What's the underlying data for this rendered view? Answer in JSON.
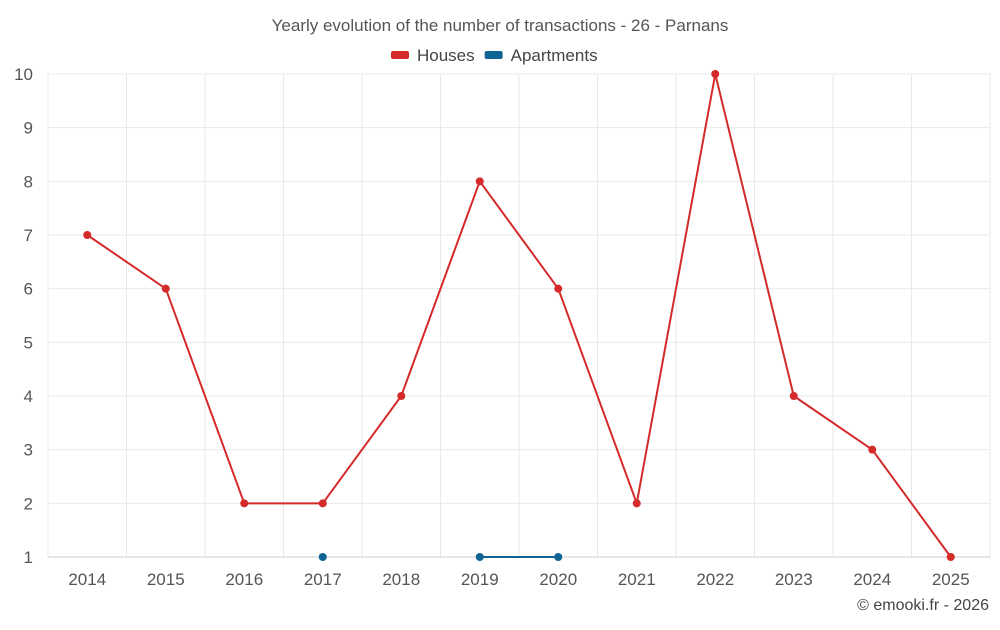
{
  "chart_data": {
    "type": "line",
    "title": "Yearly evolution of the number of transactions - 26 - Parnans",
    "categories": [
      "2014",
      "2015",
      "2016",
      "2017",
      "2018",
      "2019",
      "2020",
      "2021",
      "2022",
      "2023",
      "2024",
      "2025"
    ],
    "yticks": [
      1,
      2,
      3,
      4,
      5,
      6,
      7,
      8,
      9,
      10
    ],
    "ylim": [
      1,
      10
    ],
    "grid": true,
    "legend_position": "top-center",
    "series": [
      {
        "name": "Houses",
        "color": "#d42a2a",
        "values": [
          7,
          6,
          2,
          2,
          4,
          8,
          6,
          2,
          10,
          4,
          3,
          1
        ]
      },
      {
        "name": "Apartments",
        "color": "#0f6494",
        "values": [
          null,
          null,
          null,
          1,
          null,
          1,
          1,
          null,
          null,
          null,
          null,
          null
        ]
      }
    ],
    "credit": "© emooki.fr - 2026"
  }
}
